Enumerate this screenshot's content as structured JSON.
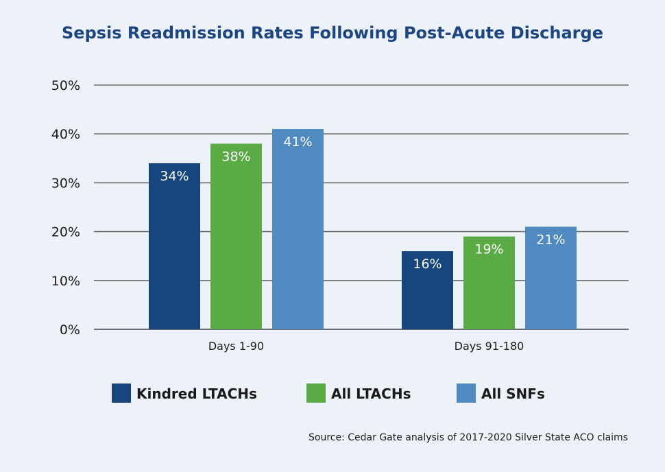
{
  "chart_data": {
    "type": "bar",
    "title": "Sepsis Readmission Rates Following Post-Acute Discharge",
    "xlabel": "",
    "ylabel": "",
    "ylim": [
      0,
      50
    ],
    "yticks": [
      "0%",
      "10%",
      "20%",
      "30%",
      "40%",
      "50%"
    ],
    "grid": true,
    "legend_position": "bottom",
    "categories": [
      "Days 1-90",
      "Days 91-180"
    ],
    "series": [
      {
        "name": "Kindred LTACHs",
        "color": "#17467f",
        "values": [
          34,
          16
        ],
        "labels": [
          "34%",
          "16%"
        ]
      },
      {
        "name": "All LTACHs",
        "color": "#5aab45",
        "values": [
          38,
          19
        ],
        "labels": [
          "38%",
          "19%"
        ]
      },
      {
        "name": "All SNFs",
        "color": "#4f8bc0",
        "values": [
          41,
          21
        ],
        "labels": [
          "41%",
          "21%"
        ]
      }
    ],
    "source": "Source: Cedar Gate analysis of 2017-2020 Silver State ACO claims"
  }
}
